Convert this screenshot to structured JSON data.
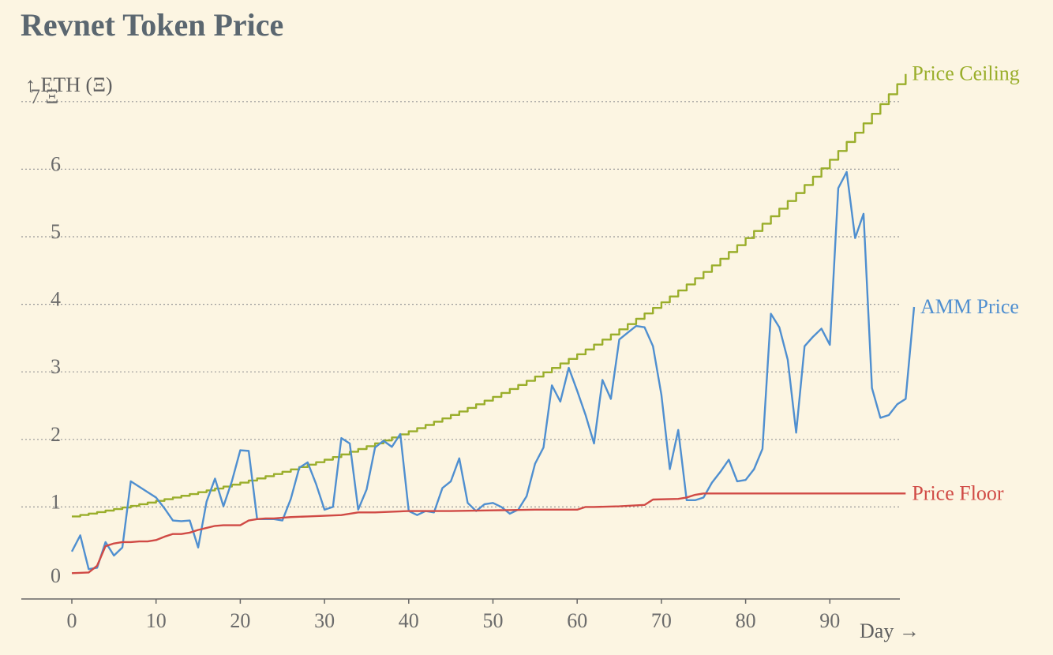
{
  "chart_data": {
    "type": "line",
    "title": "Revnet Token Price",
    "xlabel": "Day →",
    "ylabel": "↑ ETH (Ξ)",
    "xlim": [
      -6,
      99
    ],
    "ylim": [
      -0.2,
      7.2
    ],
    "x_ticks": [
      0,
      10,
      20,
      30,
      40,
      50,
      60,
      70,
      80,
      90
    ],
    "y_ticks": [
      0,
      1,
      2,
      3,
      4,
      5,
      6,
      7
    ],
    "y_tick_labels": [
      "0",
      "1",
      "2",
      "3",
      "4",
      "5",
      "6",
      "7 Ξ"
    ],
    "grid": "horizontal dotted",
    "series": [
      {
        "name": "Price Ceiling",
        "color": "#9aae2b",
        "step": true,
        "points": [
          [
            0,
            1.0
          ],
          [
            10,
            1.23
          ],
          [
            20,
            1.5
          ],
          [
            30,
            1.84
          ],
          [
            40,
            2.26
          ],
          [
            50,
            2.77
          ],
          [
            55,
            3.07
          ],
          [
            60,
            3.4
          ],
          [
            65,
            3.77
          ],
          [
            70,
            4.17
          ],
          [
            75,
            4.62
          ],
          [
            80,
            5.12
          ],
          [
            85,
            5.67
          ],
          [
            90,
            6.28
          ],
          [
            95,
            6.96
          ],
          [
            99,
            7.55
          ]
        ]
      },
      {
        "name": "AMM Price",
        "color": "#4f8fd0",
        "points": [
          [
            0,
            0.48
          ],
          [
            1,
            0.72
          ],
          [
            2,
            0.22
          ],
          [
            3,
            0.24
          ],
          [
            4,
            0.62
          ],
          [
            5,
            0.42
          ],
          [
            6,
            0.54
          ],
          [
            7,
            1.52
          ],
          [
            8,
            1.44
          ],
          [
            9,
            1.36
          ],
          [
            10,
            1.28
          ],
          [
            11,
            1.12
          ],
          [
            12,
            0.94
          ],
          [
            13,
            0.93
          ],
          [
            14,
            0.94
          ],
          [
            15,
            0.54
          ],
          [
            16,
            1.22
          ],
          [
            17,
            1.56
          ],
          [
            18,
            1.15
          ],
          [
            19,
            1.52
          ],
          [
            20,
            1.98
          ],
          [
            21,
            1.97
          ],
          [
            22,
            0.96
          ],
          [
            23,
            0.96
          ],
          [
            24,
            0.96
          ],
          [
            25,
            0.94
          ],
          [
            26,
            1.26
          ],
          [
            27,
            1.72
          ],
          [
            28,
            1.8
          ],
          [
            29,
            1.48
          ],
          [
            30,
            1.1
          ],
          [
            31,
            1.14
          ],
          [
            32,
            2.16
          ],
          [
            33,
            2.08
          ],
          [
            34,
            1.1
          ],
          [
            35,
            1.4
          ],
          [
            36,
            2.02
          ],
          [
            37,
            2.12
          ],
          [
            38,
            2.03
          ],
          [
            39,
            2.22
          ],
          [
            40,
            1.08
          ],
          [
            41,
            1.02
          ],
          [
            42,
            1.08
          ],
          [
            43,
            1.06
          ],
          [
            44,
            1.42
          ],
          [
            45,
            1.52
          ],
          [
            46,
            1.86
          ],
          [
            47,
            1.2
          ],
          [
            48,
            1.08
          ],
          [
            49,
            1.18
          ],
          [
            50,
            1.2
          ],
          [
            51,
            1.14
          ],
          [
            52,
            1.04
          ],
          [
            53,
            1.1
          ],
          [
            54,
            1.3
          ],
          [
            55,
            1.78
          ],
          [
            56,
            2.02
          ],
          [
            57,
            2.94
          ],
          [
            58,
            2.7
          ],
          [
            59,
            3.2
          ],
          [
            60,
            2.86
          ],
          [
            61,
            2.5
          ],
          [
            62,
            2.08
          ],
          [
            63,
            3.02
          ],
          [
            64,
            2.74
          ],
          [
            65,
            3.62
          ],
          [
            66,
            3.72
          ],
          [
            67,
            3.82
          ],
          [
            68,
            3.8
          ],
          [
            69,
            3.52
          ],
          [
            70,
            2.8
          ],
          [
            71,
            1.7
          ],
          [
            72,
            2.28
          ],
          [
            73,
            1.24
          ],
          [
            74,
            1.24
          ],
          [
            75,
            1.28
          ],
          [
            76,
            1.5
          ],
          [
            77,
            1.66
          ],
          [
            78,
            1.84
          ],
          [
            79,
            1.52
          ],
          [
            80,
            1.54
          ],
          [
            81,
            1.7
          ],
          [
            82,
            2.0
          ],
          [
            83,
            4.0
          ],
          [
            84,
            3.8
          ],
          [
            85,
            3.32
          ],
          [
            86,
            2.24
          ],
          [
            87,
            3.52
          ],
          [
            88,
            3.66
          ],
          [
            89,
            3.78
          ],
          [
            90,
            3.54
          ],
          [
            91,
            5.86
          ],
          [
            92,
            6.1
          ],
          [
            93,
            5.12
          ],
          [
            94,
            5.48
          ],
          [
            95,
            2.9
          ],
          [
            96,
            2.46
          ],
          [
            97,
            2.5
          ],
          [
            98,
            2.66
          ],
          [
            99,
            2.74
          ],
          [
            100,
            4.1
          ]
        ]
      },
      {
        "name": "Price Floor",
        "color": "#d04a45",
        "points": [
          [
            0,
            0.16
          ],
          [
            2,
            0.17
          ],
          [
            3,
            0.27
          ],
          [
            4,
            0.56
          ],
          [
            5,
            0.6
          ],
          [
            6,
            0.62
          ],
          [
            7,
            0.62
          ],
          [
            8,
            0.63
          ],
          [
            9,
            0.63
          ],
          [
            10,
            0.65
          ],
          [
            11,
            0.7
          ],
          [
            12,
            0.74
          ],
          [
            13,
            0.74
          ],
          [
            14,
            0.76
          ],
          [
            15,
            0.8
          ],
          [
            16,
            0.83
          ],
          [
            17,
            0.86
          ],
          [
            18,
            0.87
          ],
          [
            19,
            0.87
          ],
          [
            20,
            0.87
          ],
          [
            21,
            0.94
          ],
          [
            22,
            0.96
          ],
          [
            23,
            0.97
          ],
          [
            24,
            0.97
          ],
          [
            25,
            0.98
          ],
          [
            26,
            0.99
          ],
          [
            28,
            1.0
          ],
          [
            30,
            1.01
          ],
          [
            32,
            1.02
          ],
          [
            34,
            1.06
          ],
          [
            36,
            1.06
          ],
          [
            38,
            1.07
          ],
          [
            40,
            1.08
          ],
          [
            45,
            1.08
          ],
          [
            50,
            1.09
          ],
          [
            55,
            1.1
          ],
          [
            60,
            1.1
          ],
          [
            61,
            1.14
          ],
          [
            62,
            1.14
          ],
          [
            65,
            1.15
          ],
          [
            68,
            1.17
          ],
          [
            69,
            1.25
          ],
          [
            72,
            1.26
          ],
          [
            73,
            1.28
          ],
          [
            74,
            1.32
          ],
          [
            75,
            1.34
          ],
          [
            80,
            1.34
          ],
          [
            90,
            1.34
          ],
          [
            99,
            1.34
          ]
        ]
      }
    ]
  }
}
